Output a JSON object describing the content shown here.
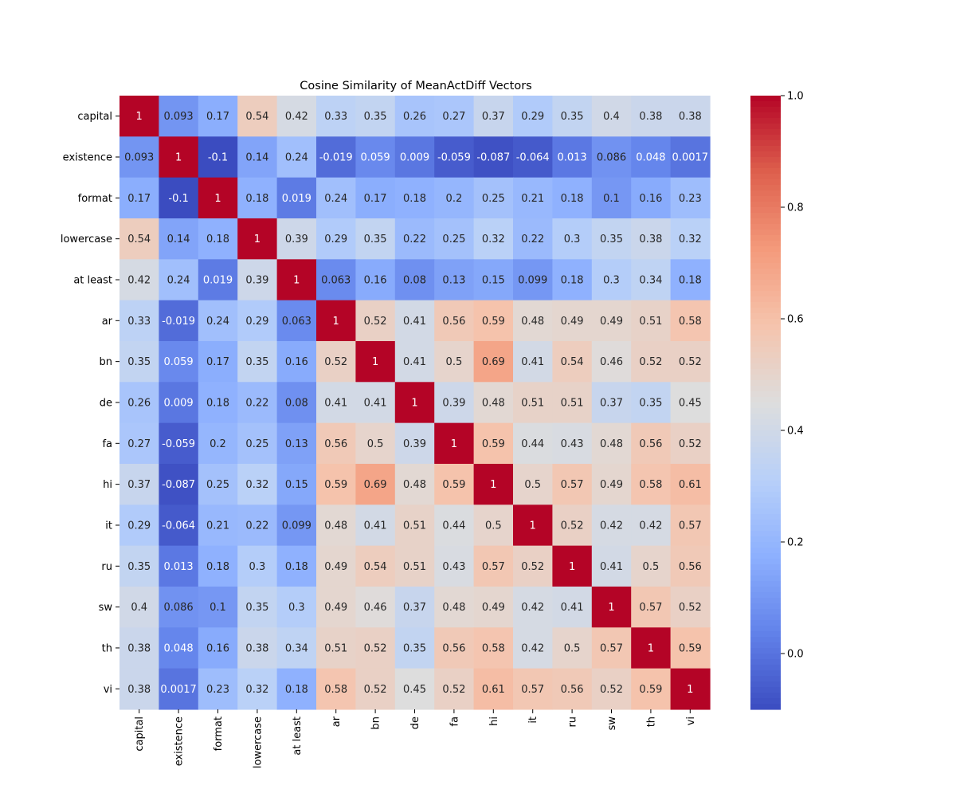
{
  "chart_data": {
    "type": "heatmap",
    "title": "Cosine Similarity of MeanActDiff Vectors",
    "xlabel": "",
    "ylabel": "",
    "labels": [
      "capital",
      "existence",
      "format",
      "lowercase",
      "at least",
      "ar",
      "bn",
      "de",
      "fa",
      "hi",
      "it",
      "ru",
      "sw",
      "th",
      "vi"
    ],
    "matrix": [
      [
        "1",
        "0.093",
        "0.17",
        "0.54",
        "0.42",
        "0.33",
        "0.35",
        "0.26",
        "0.27",
        "0.37",
        "0.29",
        "0.35",
        "0.4",
        "0.38",
        "0.38"
      ],
      [
        "0.093",
        "1",
        "-0.1",
        "0.14",
        "0.24",
        "-0.019",
        "0.059",
        "0.009",
        "-0.059",
        "-0.087",
        "-0.064",
        "0.013",
        "0.086",
        "0.048",
        "0.0017"
      ],
      [
        "0.17",
        "-0.1",
        "1",
        "0.18",
        "0.019",
        "0.24",
        "0.17",
        "0.18",
        "0.2",
        "0.25",
        "0.21",
        "0.18",
        "0.1",
        "0.16",
        "0.23"
      ],
      [
        "0.54",
        "0.14",
        "0.18",
        "1",
        "0.39",
        "0.29",
        "0.35",
        "0.22",
        "0.25",
        "0.32",
        "0.22",
        "0.3",
        "0.35",
        "0.38",
        "0.32"
      ],
      [
        "0.42",
        "0.24",
        "0.019",
        "0.39",
        "1",
        "0.063",
        "0.16",
        "0.08",
        "0.13",
        "0.15",
        "0.099",
        "0.18",
        "0.3",
        "0.34",
        "0.18"
      ],
      [
        "0.33",
        "-0.019",
        "0.24",
        "0.29",
        "0.063",
        "1",
        "0.52",
        "0.41",
        "0.56",
        "0.59",
        "0.48",
        "0.49",
        "0.49",
        "0.51",
        "0.58"
      ],
      [
        "0.35",
        "0.059",
        "0.17",
        "0.35",
        "0.16",
        "0.52",
        "1",
        "0.41",
        "0.5",
        "0.69",
        "0.41",
        "0.54",
        "0.46",
        "0.52",
        "0.52"
      ],
      [
        "0.26",
        "0.009",
        "0.18",
        "0.22",
        "0.08",
        "0.41",
        "0.41",
        "1",
        "0.39",
        "0.48",
        "0.51",
        "0.51",
        "0.37",
        "0.35",
        "0.45"
      ],
      [
        "0.27",
        "-0.059",
        "0.2",
        "0.25",
        "0.13",
        "0.56",
        "0.5",
        "0.39",
        "1",
        "0.59",
        "0.44",
        "0.43",
        "0.48",
        "0.56",
        "0.52"
      ],
      [
        "0.37",
        "-0.087",
        "0.25",
        "0.32",
        "0.15",
        "0.59",
        "0.69",
        "0.48",
        "0.59",
        "1",
        "0.5",
        "0.57",
        "0.49",
        "0.58",
        "0.61"
      ],
      [
        "0.29",
        "-0.064",
        "0.21",
        "0.22",
        "0.099",
        "0.48",
        "0.41",
        "0.51",
        "0.44",
        "0.5",
        "1",
        "0.52",
        "0.42",
        "0.42",
        "0.57"
      ],
      [
        "0.35",
        "0.013",
        "0.18",
        "0.3",
        "0.18",
        "0.49",
        "0.54",
        "0.51",
        "0.43",
        "0.57",
        "0.52",
        "1",
        "0.41",
        "0.5",
        "0.56"
      ],
      [
        "0.4",
        "0.086",
        "0.1",
        "0.35",
        "0.3",
        "0.49",
        "0.46",
        "0.37",
        "0.48",
        "0.49",
        "0.42",
        "0.41",
        "1",
        "0.57",
        "0.52"
      ],
      [
        "0.38",
        "0.048",
        "0.16",
        "0.38",
        "0.34",
        "0.51",
        "0.52",
        "0.35",
        "0.56",
        "0.58",
        "0.42",
        "0.5",
        "0.57",
        "1",
        "0.59"
      ],
      [
        "0.38",
        "0.0017",
        "0.23",
        "0.32",
        "0.18",
        "0.58",
        "0.52",
        "0.45",
        "0.52",
        "0.61",
        "0.57",
        "0.56",
        "0.52",
        "0.59",
        "1"
      ]
    ],
    "colorbar": {
      "min": -0.1,
      "max": 1.0,
      "ticks": [
        "0.0",
        "0.2",
        "0.4",
        "0.6",
        "0.8",
        "1.0"
      ],
      "colormap": "coolwarm",
      "low_color": "#3b4cc0",
      "mid_color": "#dddddd",
      "high_color": "#b40426"
    }
  }
}
